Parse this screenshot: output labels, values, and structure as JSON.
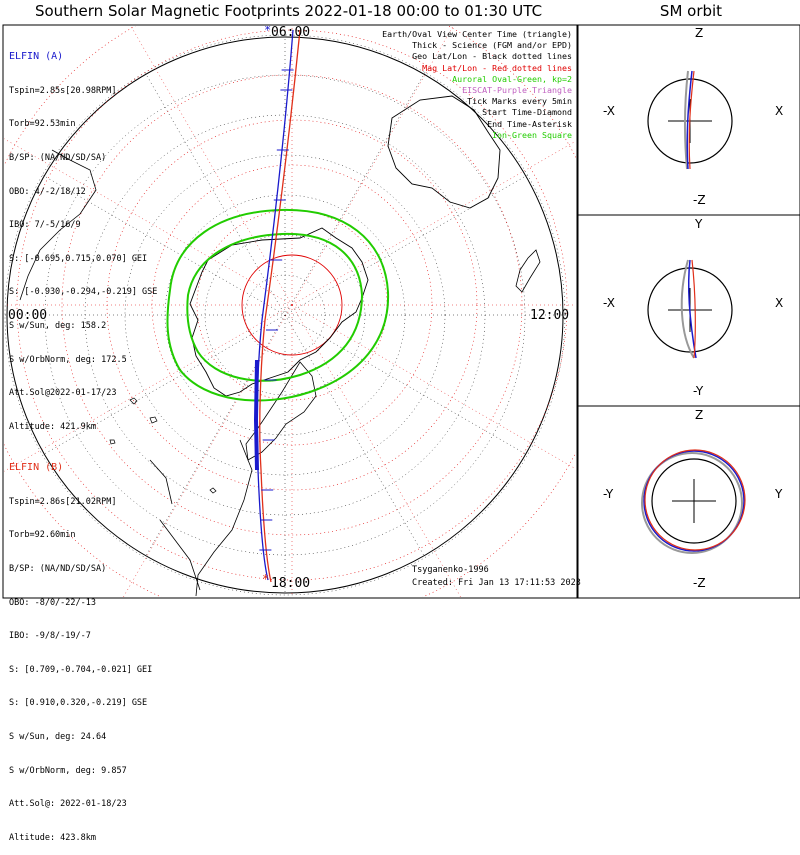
{
  "title": "Southern Solar Magnetic Footprints 2022-01-18 00:00 to 01:30 UTC",
  "orbit_title": "SM orbit",
  "time_labels": {
    "top": "06:00",
    "left": "00:00",
    "right": "12:00",
    "bottom": "18:00"
  },
  "elfin_a": {
    "name": "ELFIN (A)",
    "lines": [
      "Tspin=2.85s[20.98RPM]",
      "Torb=92.53min",
      "B/SP: (NA/ND/SD/SA)",
      "OBO: 4/-2/18/12",
      "IBO: 7/-5/16/9",
      "S: [-0.695,0.715,0.070] GEI",
      "S: [-0.930,-0.294,-0.219] GSE",
      "S w/Sun, deg: 158.2",
      "S w/OrbNorm, deg: 172.5",
      "Att.Sol@2022-01-17/23",
      "Altitude: 421.9km"
    ],
    "color": "#1a1acc"
  },
  "elfin_b": {
    "name": "ELFIN (B)",
    "lines": [
      "Tspin=2.86s[21.02RPM]",
      "Torb=92.60min",
      "B/SP: (NA/ND/SD/SA)",
      "OBO: -8/0/-22/-13",
      "IBO: -9/8/-19/-7",
      "S: [0.709,-0.704,-0.021] GEI",
      "S: [0.910,0.320,-0.219] GSE",
      "S w/Sun, deg: 24.64",
      "S w/OrbNorm, deg: 9.857",
      "Att.Sol@: 2022-01-18/23",
      "Altitude: 423.8km"
    ],
    "color": "#e0301a"
  },
  "legend": [
    {
      "text": "Earth/Oval View Center Time (triangle)",
      "color": "#000000"
    },
    {
      "text": "Thick - Science (FGM and/or EPD)",
      "color": "#000000"
    },
    {
      "text": "Geo Lat/Lon - Black dotted lines",
      "color": "#000000"
    },
    {
      "text": "Mag Lat/Lon - Red dotted lines",
      "color": "#e00000"
    },
    {
      "text": "Auroral Oval-Green, kp=2",
      "color": "#22cc00"
    },
    {
      "text": "EISCAT-Purple Triangle",
      "color": "#c060c0"
    },
    {
      "text": "Tick Marks every 5min",
      "color": "#000000"
    },
    {
      "text": "Start Time-Diamond",
      "color": "#000000"
    },
    {
      "text": "End Time-Asterisk",
      "color": "#000000"
    },
    {
      "text": "Ion-Green Square",
      "color": "#22cc00"
    }
  ],
  "credit": {
    "model": "Tsyganenko-1996",
    "created": "Created: Fri Jan 13 17:11:53 2023"
  },
  "panels": [
    {
      "left": "-X",
      "right": "X",
      "top": "Z",
      "bottom": "-Z"
    },
    {
      "left": "-X",
      "right": "X",
      "top": "Y",
      "bottom": "-Y"
    },
    {
      "left": "-Y",
      "right": "Y",
      "top": "Z",
      "bottom": "-Z"
    }
  ],
  "chart_data": {
    "type": "polar-map",
    "projection": "southern-hemisphere footprints",
    "series": [
      {
        "name": "ELFIN (A)",
        "color": "#1a1acc"
      },
      {
        "name": "ELFIN (B)",
        "color": "#e0301a"
      }
    ],
    "colors": {
      "mag_grid": "#e00000",
      "geo_grid": "#000000",
      "oval": "#22cc00",
      "coast": "#000000"
    }
  }
}
